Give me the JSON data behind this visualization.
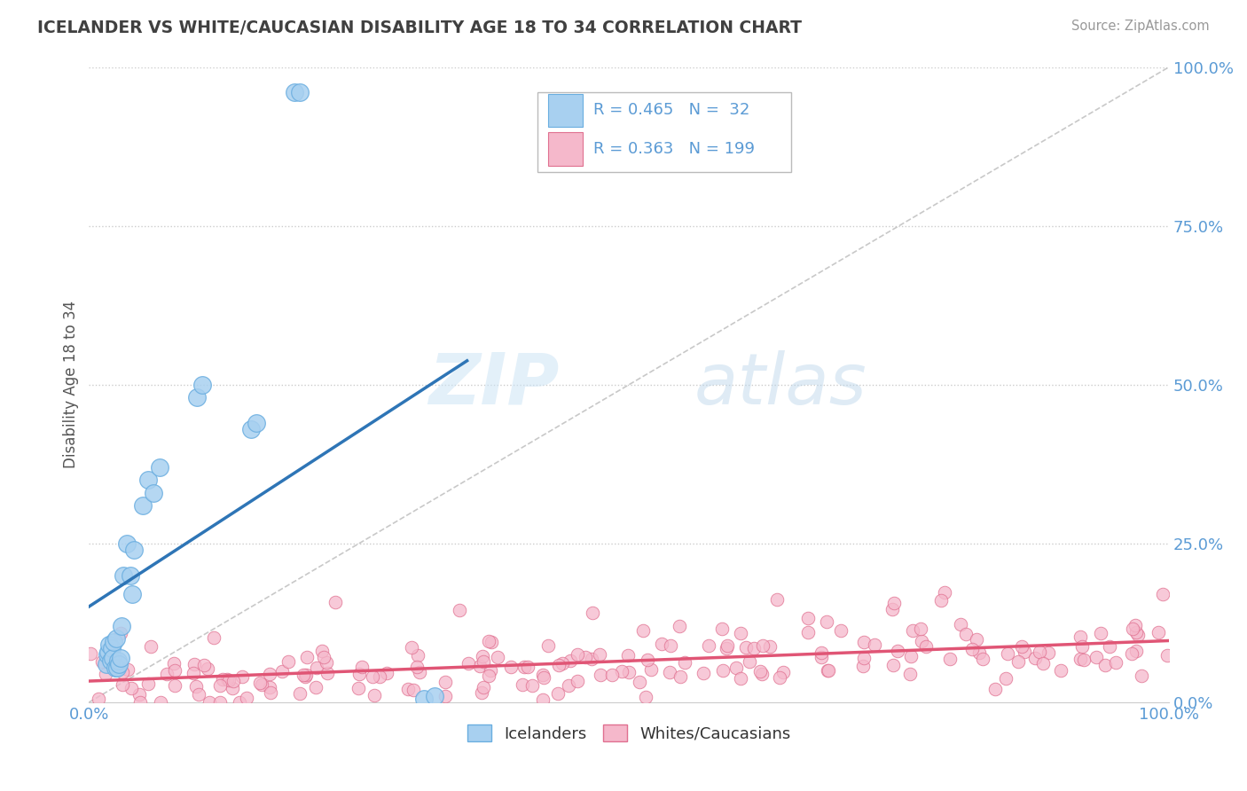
{
  "title": "ICELANDER VS WHITE/CAUCASIAN DISABILITY AGE 18 TO 34 CORRELATION CHART",
  "source": "Source: ZipAtlas.com",
  "ylabel": "Disability Age 18 to 34",
  "watermark_zip": "ZIP",
  "watermark_atlas": "atlas",
  "xlim": [
    0,
    1
  ],
  "ylim": [
    0,
    1
  ],
  "ytick_vals": [
    0,
    0.25,
    0.5,
    0.75,
    1.0
  ],
  "ytick_labels": [
    "0.0%",
    "25.0%",
    "50.0%",
    "75.0%",
    "100.0%"
  ],
  "xtick_vals": [
    0,
    1
  ],
  "xtick_labels": [
    "0.0%",
    "100.0%"
  ],
  "grid_color": "#cccccc",
  "background_color": "#ffffff",
  "iceland_color": "#a8d0f0",
  "iceland_edge_color": "#6aaee0",
  "white_color": "#f5b8cb",
  "white_edge_color": "#e07090",
  "iceland_R": 0.465,
  "iceland_N": 32,
  "white_R": 0.363,
  "white_N": 199,
  "title_color": "#404040",
  "axis_tick_color": "#5b9bd5",
  "legend_text_color": "#5b9bd5",
  "iceland_trend_color": "#2e75b6",
  "white_trend_color": "#e05575",
  "diag_color": "#bbbbbb",
  "iceland_scatter_x": [
    0.016,
    0.017,
    0.018,
    0.019,
    0.02,
    0.021,
    0.022,
    0.023,
    0.024,
    0.025,
    0.026,
    0.027,
    0.028,
    0.029,
    0.03,
    0.032,
    0.035,
    0.038,
    0.04,
    0.042,
    0.05,
    0.055,
    0.06,
    0.065,
    0.1,
    0.105,
    0.15,
    0.155,
    0.19,
    0.195,
    0.31,
    0.32
  ],
  "iceland_scatter_y": [
    0.06,
    0.075,
    0.08,
    0.09,
    0.065,
    0.085,
    0.07,
    0.095,
    0.055,
    0.1,
    0.055,
    0.065,
    0.06,
    0.07,
    0.12,
    0.2,
    0.25,
    0.2,
    0.17,
    0.24,
    0.31,
    0.35,
    0.33,
    0.37,
    0.48,
    0.5,
    0.43,
    0.44,
    0.96,
    0.96,
    0.005,
    0.01
  ],
  "white_seed": 15
}
